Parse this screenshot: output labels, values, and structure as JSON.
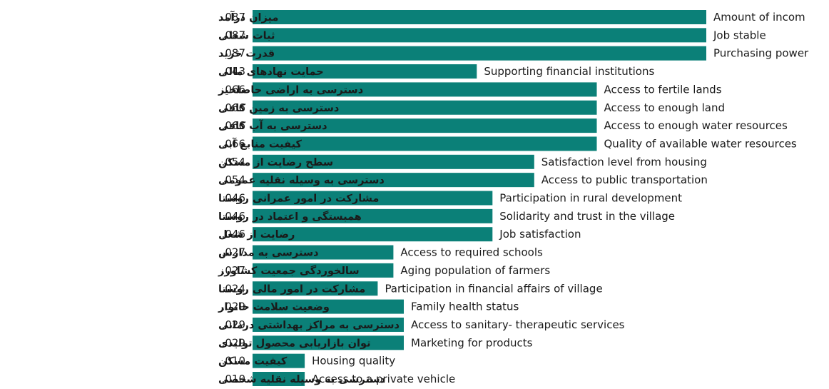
{
  "colors": {
    "bar": "#0b8078",
    "text": "#1a1a1a",
    "background": "#ffffff"
  },
  "chart_data": {
    "type": "bar",
    "orientation": "horizontal",
    "title": "",
    "xlabel": "",
    "ylabel": "",
    "xlim": [
      0,
      0.087
    ],
    "grid": false,
    "legend": "none",
    "categories": [
      {
        "fa": "میزان درآمد",
        "value_label": ".087",
        "en": "Amount of incom",
        "value": 0.087
      },
      {
        "fa": "ثبات شغلی",
        "value_label": ".087",
        "en": "Job stable",
        "value": 0.087
      },
      {
        "fa": "قدرت خرید",
        "value_label": ".087",
        "en": "Purchasing power",
        "value": 0.087
      },
      {
        "fa": "حمایت نهادهای مالی",
        "value_label": ".043",
        "en": "Supporting financial institutions",
        "value": 0.043
      },
      {
        "fa": "دسترسی به اراضی حاصلخیز",
        "value_label": ".066",
        "en": "Access to fertile lands",
        "value": 0.066
      },
      {
        "fa": "دسترسی به زمین کافی",
        "value_label": ".066",
        "en": "Access to  enough land",
        "value": 0.066
      },
      {
        "fa": "دسترسی به آب کافی",
        "value_label": ".066",
        "en": "Access to  enough water resources",
        "value": 0.066
      },
      {
        "fa": "کیفیت منابع آبی",
        "value_label": ".066",
        "en": "Quality of available water resources",
        "value": 0.066
      },
      {
        "fa": "سطح رضایت از مسکن",
        "value_label": ".054",
        "en": "Satisfaction level from housing",
        "value": 0.054
      },
      {
        "fa": "دسترسی به وسیله نقلیه عمومی",
        "value_label": ".054",
        "en": "Access to public transportation",
        "value": 0.054
      },
      {
        "fa": "مشارکت در امور عمرانی روستا",
        "value_label": ".046",
        "en": "Participation in rural development",
        "value": 0.046
      },
      {
        "fa": "همبستگی و اعتماد در روستا",
        "value_label": ".046",
        "en": "Solidarity and trust in the village",
        "value": 0.046
      },
      {
        "fa": "رضایت از شغل",
        "value_label": ".046",
        "en": "Job satisfaction",
        "value": 0.046
      },
      {
        "fa": "دسترسی به مدارس",
        "value_label": ".027",
        "en": "Access to required schools",
        "value": 0.027
      },
      {
        "fa": "سالخوردگی جمعیت کشاورز",
        "value_label": ".027",
        "en": "Aging  population of farmers",
        "value": 0.027
      },
      {
        "fa": "مشارکت در امور مالی روستا",
        "value_label": ".024",
        "en": "Participation in financial affairs of village",
        "value": 0.024
      },
      {
        "fa": "وضعیت سلامت خانوار",
        "value_label": ".029",
        "en": "Family health status",
        "value": 0.029
      },
      {
        "fa": "دسترسی به مراکز بهداشتی درمانی",
        "value_label": ".029",
        "en": "Access to sanitary- therapeutic services",
        "value": 0.029
      },
      {
        "fa": "توان بازاریابی محصول تولیدی",
        "value_label": ".029",
        "en": "Marketing  for products",
        "value": 0.029
      },
      {
        "fa": "کیفیت مسکن",
        "value_label": ".010",
        "en": "Housing quality",
        "value": 0.01
      },
      {
        "fa": "دسترسی به وسیله نقلیه شخصی",
        "value_label": ".010",
        "en": "Access to a private vehicle",
        "value": 0.01
      }
    ]
  }
}
